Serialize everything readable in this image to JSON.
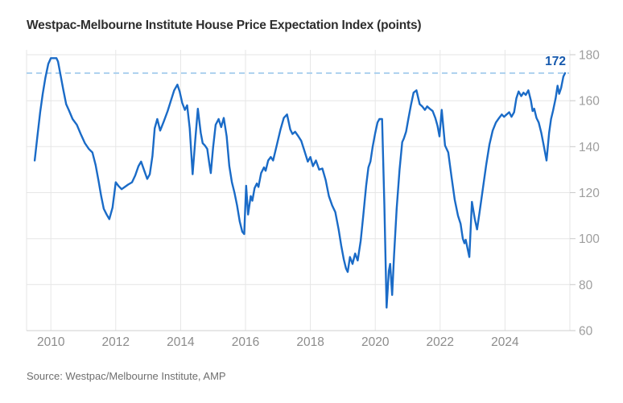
{
  "title": "Westpac-Melbourne Institute House Price Expectation Index (points)",
  "source": "Source: Westpac/Melbourne Institute, AMP",
  "annotation": {
    "label": "172"
  },
  "colors": {
    "line": "#1a6bc7",
    "annotation": "#1659ad",
    "reference_dash": "#abd0ee",
    "grid": "#e6e6e6",
    "axis": "#cfcfcf",
    "tick": "#c9c9c9",
    "y_label": "#9e9e9e",
    "x_label": "#8c8c8c",
    "title": "#2e2e2e",
    "source": "#6e6e6e",
    "background": "#ffffff"
  },
  "chart_data": {
    "type": "line",
    "title": "Westpac-Melbourne Institute House Price Expectation Index (points)",
    "unit": "points",
    "xlim": [
      2009.25,
      2026.0
    ],
    "ylim": [
      60,
      180
    ],
    "x_ticks": [
      2010,
      2012,
      2014,
      2016,
      2018,
      2020,
      2022,
      2024
    ],
    "y_ticks": [
      60,
      80,
      100,
      120,
      140,
      160,
      180
    ],
    "grid": true,
    "legend_position": "none",
    "y_axis_side": "right",
    "reference_line": {
      "value": 172,
      "label": "172",
      "style": "dashed"
    },
    "series": [
      {
        "name": "House Price Expectation Index",
        "points": [
          [
            2009.5,
            134
          ],
          [
            2009.58,
            144
          ],
          [
            2009.67,
            155
          ],
          [
            2009.75,
            163
          ],
          [
            2009.83,
            170
          ],
          [
            2009.92,
            176
          ],
          [
            2010.0,
            178.5
          ],
          [
            2010.17,
            178.5
          ],
          [
            2010.22,
            177
          ],
          [
            2010.3,
            171
          ],
          [
            2010.38,
            165
          ],
          [
            2010.47,
            158.5
          ],
          [
            2010.55,
            156
          ],
          [
            2010.67,
            152
          ],
          [
            2010.8,
            149.5
          ],
          [
            2010.92,
            145.5
          ],
          [
            2011.05,
            141.5
          ],
          [
            2011.17,
            139
          ],
          [
            2011.28,
            137.5
          ],
          [
            2011.38,
            132
          ],
          [
            2011.47,
            125
          ],
          [
            2011.55,
            118.5
          ],
          [
            2011.63,
            113
          ],
          [
            2011.72,
            110.5
          ],
          [
            2011.8,
            108.5
          ],
          [
            2011.9,
            113.5
          ],
          [
            2012.0,
            124.5
          ],
          [
            2012.08,
            123
          ],
          [
            2012.18,
            121.5
          ],
          [
            2012.28,
            122.5
          ],
          [
            2012.38,
            123.5
          ],
          [
            2012.5,
            124.5
          ],
          [
            2012.6,
            127.5
          ],
          [
            2012.7,
            131.5
          ],
          [
            2012.78,
            133.5
          ],
          [
            2012.88,
            129.5
          ],
          [
            2012.97,
            126
          ],
          [
            2013.05,
            128
          ],
          [
            2013.13,
            136
          ],
          [
            2013.2,
            148
          ],
          [
            2013.28,
            152
          ],
          [
            2013.37,
            147
          ],
          [
            2013.48,
            151
          ],
          [
            2013.6,
            155.5
          ],
          [
            2013.7,
            160
          ],
          [
            2013.8,
            164.5
          ],
          [
            2013.9,
            167
          ],
          [
            2013.97,
            164
          ],
          [
            2014.05,
            159
          ],
          [
            2014.13,
            156
          ],
          [
            2014.2,
            158
          ],
          [
            2014.28,
            148
          ],
          [
            2014.37,
            128
          ],
          [
            2014.45,
            143
          ],
          [
            2014.53,
            156.5
          ],
          [
            2014.62,
            146
          ],
          [
            2014.68,
            141.5
          ],
          [
            2014.75,
            140.5
          ],
          [
            2014.82,
            139
          ],
          [
            2014.88,
            133
          ],
          [
            2014.93,
            128.5
          ],
          [
            2015.0,
            139.5
          ],
          [
            2015.08,
            149.5
          ],
          [
            2015.17,
            152
          ],
          [
            2015.25,
            148.5
          ],
          [
            2015.33,
            152.5
          ],
          [
            2015.42,
            144.5
          ],
          [
            2015.5,
            131.5
          ],
          [
            2015.58,
            124.5
          ],
          [
            2015.66,
            120
          ],
          [
            2015.74,
            114.5
          ],
          [
            2015.82,
            107.5
          ],
          [
            2015.9,
            103
          ],
          [
            2015.96,
            102
          ],
          [
            2016.02,
            123
          ],
          [
            2016.08,
            110.5
          ],
          [
            2016.16,
            118.5
          ],
          [
            2016.21,
            116.5
          ],
          [
            2016.28,
            122
          ],
          [
            2016.35,
            124
          ],
          [
            2016.4,
            122.5
          ],
          [
            2016.48,
            128.5
          ],
          [
            2016.57,
            131
          ],
          [
            2016.62,
            129.5
          ],
          [
            2016.7,
            134
          ],
          [
            2016.78,
            135.5
          ],
          [
            2016.85,
            134
          ],
          [
            2016.97,
            141
          ],
          [
            2017.08,
            147.5
          ],
          [
            2017.18,
            152.5
          ],
          [
            2017.28,
            154
          ],
          [
            2017.38,
            147.5
          ],
          [
            2017.45,
            145.5
          ],
          [
            2017.53,
            146.5
          ],
          [
            2017.63,
            144.5
          ],
          [
            2017.72,
            142.5
          ],
          [
            2017.82,
            138
          ],
          [
            2017.92,
            133.5
          ],
          [
            2018.0,
            135.5
          ],
          [
            2018.08,
            131.5
          ],
          [
            2018.17,
            134
          ],
          [
            2018.27,
            130
          ],
          [
            2018.37,
            130.5
          ],
          [
            2018.47,
            125.5
          ],
          [
            2018.57,
            118.5
          ],
          [
            2018.67,
            114.5
          ],
          [
            2018.77,
            111.5
          ],
          [
            2018.87,
            104
          ],
          [
            2018.95,
            97
          ],
          [
            2019.03,
            91
          ],
          [
            2019.1,
            87
          ],
          [
            2019.15,
            85.5
          ],
          [
            2019.22,
            92
          ],
          [
            2019.3,
            89
          ],
          [
            2019.38,
            93.5
          ],
          [
            2019.46,
            90.5
          ],
          [
            2019.55,
            99
          ],
          [
            2019.63,
            110
          ],
          [
            2019.72,
            123
          ],
          [
            2019.79,
            131
          ],
          [
            2019.85,
            133.5
          ],
          [
            2019.92,
            140
          ],
          [
            2020.0,
            146
          ],
          [
            2020.07,
            150.5
          ],
          [
            2020.13,
            152
          ],
          [
            2020.21,
            152
          ],
          [
            2020.28,
            115
          ],
          [
            2020.35,
            70
          ],
          [
            2020.42,
            86
          ],
          [
            2020.46,
            89
          ],
          [
            2020.52,
            75.5
          ],
          [
            2020.58,
            93
          ],
          [
            2020.66,
            113
          ],
          [
            2020.75,
            130
          ],
          [
            2020.83,
            142
          ],
          [
            2020.88,
            143.5
          ],
          [
            2020.95,
            146.5
          ],
          [
            2021.02,
            152
          ],
          [
            2021.1,
            158
          ],
          [
            2021.18,
            163.5
          ],
          [
            2021.27,
            164.5
          ],
          [
            2021.37,
            158.5
          ],
          [
            2021.45,
            157.5
          ],
          [
            2021.53,
            156
          ],
          [
            2021.6,
            157.5
          ],
          [
            2021.68,
            156.5
          ],
          [
            2021.77,
            155.5
          ],
          [
            2021.85,
            152.5
          ],
          [
            2021.92,
            149
          ],
          [
            2021.98,
            144.5
          ],
          [
            2022.05,
            156
          ],
          [
            2022.15,
            140.5
          ],
          [
            2022.25,
            137.5
          ],
          [
            2022.35,
            127
          ],
          [
            2022.45,
            117
          ],
          [
            2022.55,
            110
          ],
          [
            2022.63,
            106.5
          ],
          [
            2022.7,
            100
          ],
          [
            2022.75,
            98
          ],
          [
            2022.79,
            99.5
          ],
          [
            2022.84,
            96
          ],
          [
            2022.9,
            92
          ],
          [
            2022.98,
            116
          ],
          [
            2023.07,
            108.5
          ],
          [
            2023.14,
            104
          ],
          [
            2023.22,
            112
          ],
          [
            2023.32,
            122
          ],
          [
            2023.42,
            132
          ],
          [
            2023.52,
            141
          ],
          [
            2023.62,
            147
          ],
          [
            2023.72,
            150.5
          ],
          [
            2023.82,
            152.5
          ],
          [
            2023.9,
            154
          ],
          [
            2023.97,
            153
          ],
          [
            2024.05,
            154
          ],
          [
            2024.13,
            155
          ],
          [
            2024.2,
            153
          ],
          [
            2024.28,
            155
          ],
          [
            2024.35,
            161
          ],
          [
            2024.42,
            164
          ],
          [
            2024.5,
            162
          ],
          [
            2024.57,
            163.5
          ],
          [
            2024.64,
            162.5
          ],
          [
            2024.72,
            164.5
          ],
          [
            2024.8,
            160
          ],
          [
            2024.85,
            155.5
          ],
          [
            2024.9,
            156.5
          ],
          [
            2024.97,
            152.5
          ],
          [
            2025.04,
            150.5
          ],
          [
            2025.12,
            146
          ],
          [
            2025.2,
            140
          ],
          [
            2025.28,
            134
          ],
          [
            2025.36,
            146
          ],
          [
            2025.42,
            152
          ],
          [
            2025.48,
            155.5
          ],
          [
            2025.56,
            161
          ],
          [
            2025.62,
            166.5
          ],
          [
            2025.67,
            163
          ],
          [
            2025.73,
            165.5
          ],
          [
            2025.8,
            170.5
          ],
          [
            2025.85,
            172
          ]
        ]
      }
    ]
  }
}
